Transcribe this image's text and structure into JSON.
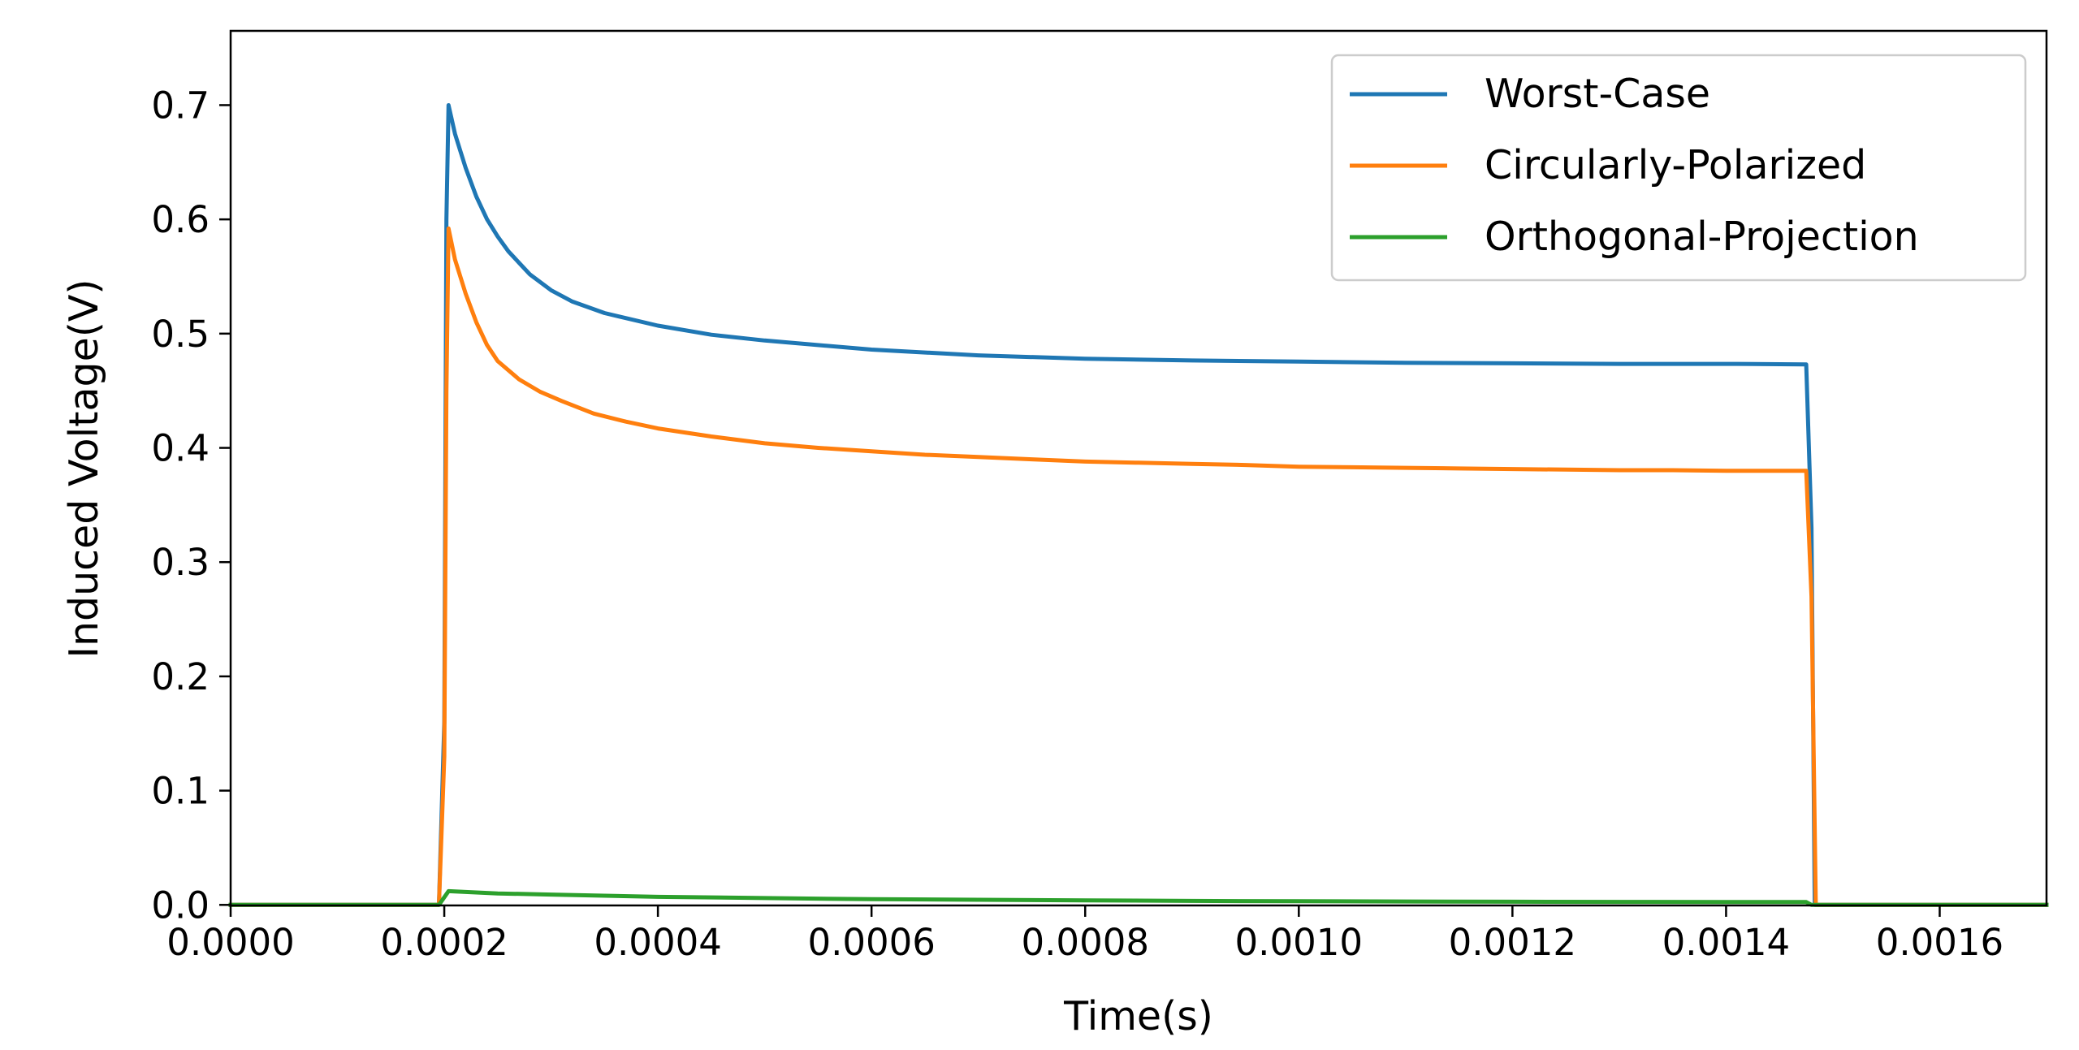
{
  "chart_data": {
    "type": "line",
    "title": "",
    "xlabel": "Time(s)",
    "ylabel": "Induced Voltage(V)",
    "xlim": [
      0.0,
      0.0017
    ],
    "ylim": [
      -0.0005,
      0.765
    ],
    "x_ticks": [
      0.0,
      0.0002,
      0.0004,
      0.0006,
      0.0008,
      0.001,
      0.0012,
      0.0014,
      0.0016
    ],
    "x_tick_labels": [
      "0.0000",
      "0.0002",
      "0.0004",
      "0.0006",
      "0.0008",
      "0.0010",
      "0.0012",
      "0.0014",
      "0.0016"
    ],
    "y_ticks": [
      0.0,
      0.1,
      0.2,
      0.3,
      0.4,
      0.5,
      0.6,
      0.7
    ],
    "y_tick_labels": [
      "0.0",
      "0.1",
      "0.2",
      "0.3",
      "0.4",
      "0.5",
      "0.6",
      "0.7"
    ],
    "grid": false,
    "legend_position": "top-right",
    "series": [
      {
        "name": "Worst-Case",
        "color": "#1f77b4",
        "points": [
          [
            0.0,
            0.0
          ],
          [
            0.000195,
            0.0
          ],
          [
            0.0002,
            0.16
          ],
          [
            0.000202,
            0.6
          ],
          [
            0.000204,
            0.7
          ],
          [
            0.00021,
            0.675
          ],
          [
            0.000215,
            0.66
          ],
          [
            0.00022,
            0.645
          ],
          [
            0.00023,
            0.62
          ],
          [
            0.00024,
            0.6
          ],
          [
            0.00025,
            0.585
          ],
          [
            0.00026,
            0.572
          ],
          [
            0.00028,
            0.552
          ],
          [
            0.0003,
            0.538
          ],
          [
            0.00032,
            0.528
          ],
          [
            0.00035,
            0.518
          ],
          [
            0.0004,
            0.507
          ],
          [
            0.00045,
            0.499
          ],
          [
            0.0005,
            0.494
          ],
          [
            0.0006,
            0.486
          ],
          [
            0.0007,
            0.481
          ],
          [
            0.0008,
            0.478
          ],
          [
            0.0009,
            0.4765
          ],
          [
            0.001,
            0.4755
          ],
          [
            0.0011,
            0.4745
          ],
          [
            0.0012,
            0.474
          ],
          [
            0.0013,
            0.4735
          ],
          [
            0.00141,
            0.4735
          ],
          [
            0.001475,
            0.473
          ],
          [
            0.00148,
            0.33
          ],
          [
            0.001483,
            0.0
          ],
          [
            0.0017,
            0.0
          ]
        ]
      },
      {
        "name": "Circularly-Polarized",
        "color": "#ff7f0e",
        "points": [
          [
            0.0,
            0.0
          ],
          [
            0.000195,
            0.0
          ],
          [
            0.0002,
            0.13
          ],
          [
            0.000202,
            0.45
          ],
          [
            0.000204,
            0.592
          ],
          [
            0.00021,
            0.565
          ],
          [
            0.00022,
            0.535
          ],
          [
            0.00023,
            0.51
          ],
          [
            0.00024,
            0.49
          ],
          [
            0.00025,
            0.476
          ],
          [
            0.00027,
            0.46
          ],
          [
            0.00029,
            0.449
          ],
          [
            0.00031,
            0.441
          ],
          [
            0.00034,
            0.43
          ],
          [
            0.00037,
            0.423
          ],
          [
            0.0004,
            0.417
          ],
          [
            0.00045,
            0.41
          ],
          [
            0.0005,
            0.404
          ],
          [
            0.00055,
            0.4
          ],
          [
            0.0006,
            0.397
          ],
          [
            0.00065,
            0.394
          ],
          [
            0.0007,
            0.392
          ],
          [
            0.00075,
            0.39
          ],
          [
            0.0008,
            0.388
          ],
          [
            0.00085,
            0.387
          ],
          [
            0.0009,
            0.386
          ],
          [
            0.00095,
            0.385
          ],
          [
            0.001,
            0.3835
          ],
          [
            0.00105,
            0.383
          ],
          [
            0.0011,
            0.3825
          ],
          [
            0.00115,
            0.382
          ],
          [
            0.0012,
            0.3815
          ],
          [
            0.00125,
            0.381
          ],
          [
            0.0013,
            0.3805
          ],
          [
            0.00135,
            0.3805
          ],
          [
            0.0014,
            0.38
          ],
          [
            0.001475,
            0.38
          ],
          [
            0.00148,
            0.27
          ],
          [
            0.001484,
            0.0
          ],
          [
            0.0017,
            0.0
          ]
        ]
      },
      {
        "name": "Orthogonal-Projection",
        "color": "#2ca02c",
        "points": [
          [
            0.0,
            0.0
          ],
          [
            0.000195,
            0.0
          ],
          [
            0.000204,
            0.012
          ],
          [
            0.00025,
            0.01
          ],
          [
            0.0003,
            0.009
          ],
          [
            0.00035,
            0.008
          ],
          [
            0.0004,
            0.007
          ],
          [
            0.0005,
            0.006
          ],
          [
            0.0006,
            0.005
          ],
          [
            0.0007,
            0.0045
          ],
          [
            0.0008,
            0.004
          ],
          [
            0.0009,
            0.0035
          ],
          [
            0.001,
            0.0032
          ],
          [
            0.0011,
            0.003
          ],
          [
            0.0012,
            0.0028
          ],
          [
            0.0013,
            0.0026
          ],
          [
            0.0014,
            0.0025
          ],
          [
            0.001475,
            0.0025
          ],
          [
            0.00148,
            0.0
          ],
          [
            0.0017,
            0.0
          ]
        ]
      }
    ]
  }
}
